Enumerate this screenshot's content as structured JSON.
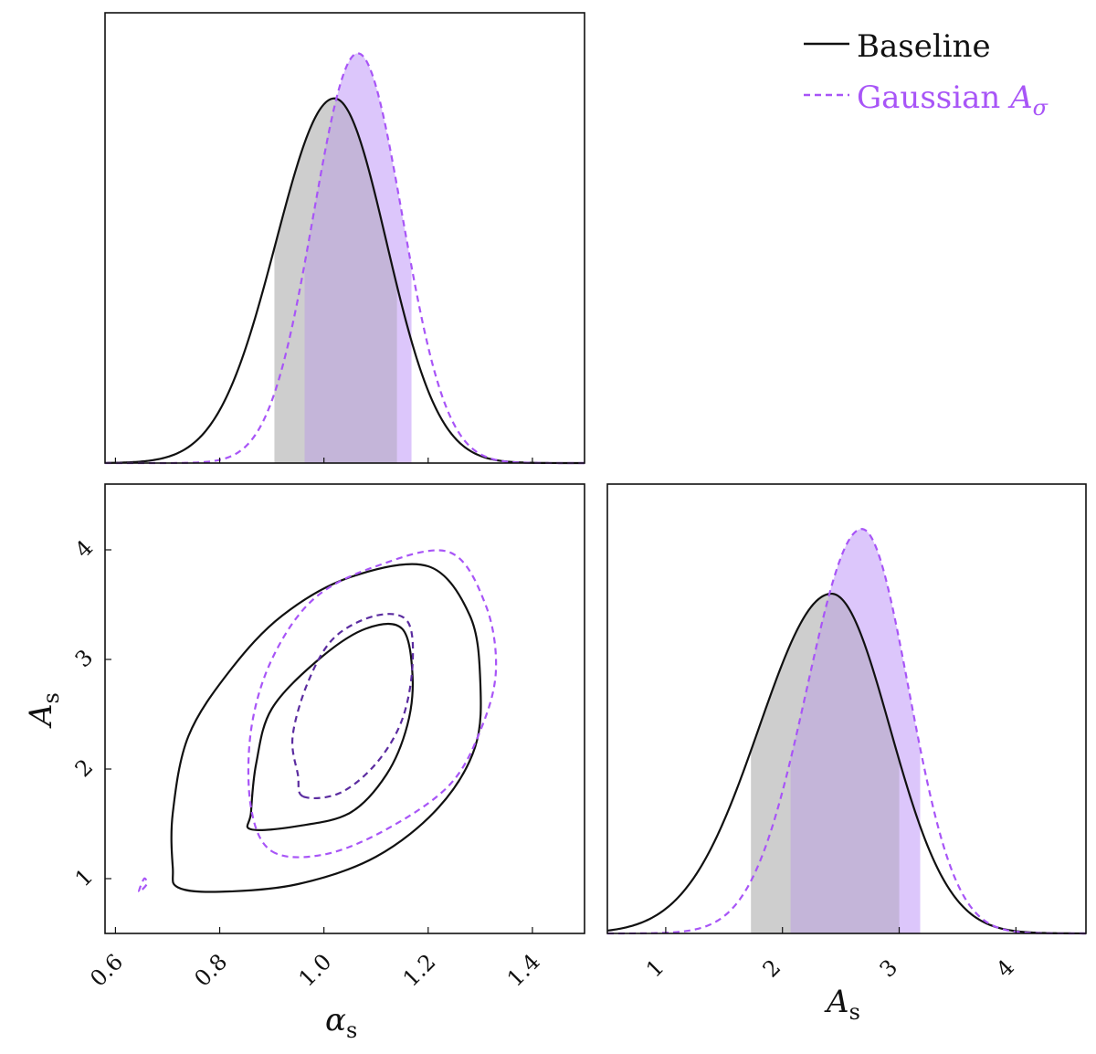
{
  "colors": {
    "baseline": "#111111",
    "gaussian": "#a855f7",
    "gaussian_inner": "#5b2ca0",
    "baseline_fill": "#bdbdbd",
    "gaussian_fill": "#dcc6fb",
    "overlap_fill": "#c4b5d9"
  },
  "legend": {
    "baseline_label": "Baseline",
    "gaussian_label": "Gaussian ",
    "gaussian_symbol": "A",
    "gaussian_sub": "σ"
  },
  "labels": {
    "alpha_s_symbol": "α",
    "A_s_symbol": "A",
    "subscript": "s"
  },
  "chart_data": [
    {
      "type": "area",
      "panel": "alpha_s marginal",
      "xlim": [
        0.58,
        1.5
      ],
      "series": [
        {
          "name": "Baseline",
          "mean": 1.02,
          "sigma_left": 0.112,
          "sigma_right": 0.1,
          "peak": 0.89,
          "shade_68": [
            0.905,
            1.14
          ]
        },
        {
          "name": "Gaussian Aσ",
          "mean": 1.065,
          "sigma_left": 0.085,
          "sigma_right": 0.085,
          "peak": 1.0,
          "shade_68": [
            0.963,
            1.168
          ]
        }
      ]
    },
    {
      "type": "scatter",
      "panel": "alpha_s vs A_s contours",
      "xlim": [
        0.58,
        1.5
      ],
      "ylim": [
        0.5,
        4.6
      ],
      "xticks": [
        "0.6",
        "0.8",
        "1.0",
        "1.2",
        "1.4"
      ],
      "xtick_values": [
        0.6,
        0.8,
        1.0,
        1.2,
        1.4
      ],
      "yticks": [
        "1",
        "2",
        "3",
        "4"
      ],
      "ytick_values": [
        1,
        2,
        3,
        4
      ],
      "series": [
        {
          "name": "Baseline 68%",
          "points": [
            [
              0.86,
              1.45
            ],
            [
              0.95,
              1.48
            ],
            [
              1.05,
              1.6
            ],
            [
              1.12,
              1.95
            ],
            [
              1.16,
              2.4
            ],
            [
              1.17,
              2.85
            ],
            [
              1.15,
              3.28
            ],
            [
              1.08,
              3.28
            ],
            [
              0.99,
              3.0
            ],
            [
              0.9,
              2.55
            ],
            [
              0.87,
              2.05
            ],
            [
              0.86,
              1.6
            ]
          ]
        },
        {
          "name": "Baseline 95%",
          "points": [
            [
              0.72,
              0.92
            ],
            [
              0.8,
              0.88
            ],
            [
              0.95,
              0.95
            ],
            [
              1.1,
              1.2
            ],
            [
              1.22,
              1.65
            ],
            [
              1.29,
              2.2
            ],
            [
              1.3,
              2.8
            ],
            [
              1.28,
              3.4
            ],
            [
              1.2,
              3.85
            ],
            [
              1.05,
              3.75
            ],
            [
              0.92,
              3.4
            ],
            [
              0.82,
              2.9
            ],
            [
              0.74,
              2.3
            ],
            [
              0.71,
              1.6
            ],
            [
              0.71,
              1.1
            ]
          ]
        },
        {
          "name": "Gaussian Aσ 68%",
          "points": [
            [
              0.96,
              1.75
            ],
            [
              1.03,
              1.78
            ],
            [
              1.1,
              2.05
            ],
            [
              1.15,
              2.45
            ],
            [
              1.17,
              2.95
            ],
            [
              1.16,
              3.35
            ],
            [
              1.1,
              3.4
            ],
            [
              1.02,
              3.2
            ],
            [
              0.97,
              2.8
            ],
            [
              0.94,
              2.3
            ],
            [
              0.95,
              1.95
            ]
          ]
        },
        {
          "name": "Gaussian Aσ 95%",
          "points": [
            [
              0.9,
              1.25
            ],
            [
              1.0,
              1.22
            ],
            [
              1.12,
              1.45
            ],
            [
              1.24,
              1.85
            ],
            [
              1.3,
              2.35
            ],
            [
              1.33,
              2.9
            ],
            [
              1.31,
              3.5
            ],
            [
              1.24,
              3.98
            ],
            [
              1.1,
              3.85
            ],
            [
              0.98,
              3.55
            ],
            [
              0.9,
              3.0
            ],
            [
              0.86,
              2.35
            ],
            [
              0.86,
              1.65
            ]
          ]
        },
        {
          "name": "Gaussian Aσ island",
          "points": [
            [
              0.645,
              0.88
            ],
            [
              0.655,
              1.0
            ],
            [
              0.66,
              0.95
            ]
          ]
        }
      ]
    },
    {
      "type": "area",
      "panel": "A_s marginal",
      "xlim": [
        0.5,
        4.6
      ],
      "xticks": [
        "1",
        "2",
        "3",
        "4"
      ],
      "xtick_values": [
        1,
        2,
        3,
        4
      ],
      "series": [
        {
          "name": "Baseline",
          "mean": 2.42,
          "sigma_left": 0.62,
          "sigma_right": 0.5,
          "peak": 0.84,
          "shade_68": [
            1.73,
            3.0
          ]
        },
        {
          "name": "Gaussian Aσ",
          "mean": 2.68,
          "sigma_left": 0.47,
          "sigma_right": 0.4,
          "peak": 1.0,
          "shade_68": [
            2.07,
            3.18
          ]
        }
      ]
    }
  ]
}
